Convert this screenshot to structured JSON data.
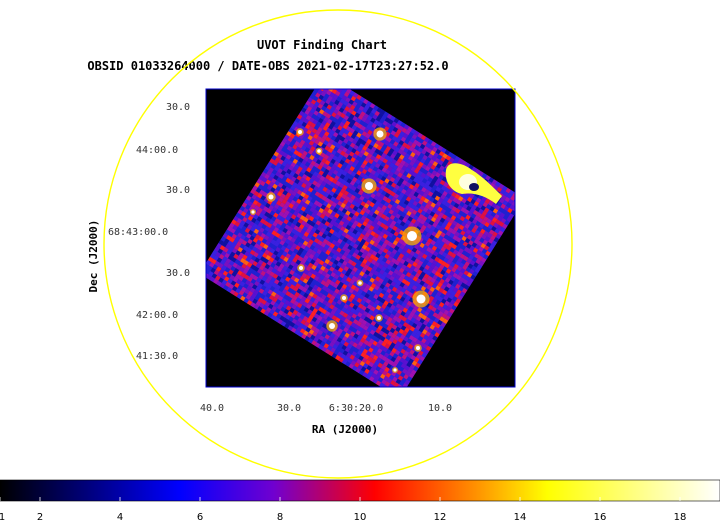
{
  "chart_data": {
    "type": "heatmap",
    "title": "UVOT Finding Chart",
    "subtitle": "OBSID 01033264000 / DATE-OBS 2021-02-17T23:27:52.0",
    "xlabel": "RA (J2000)",
    "ylabel": "Dec (J2000)",
    "x_ticks": [
      "40.0",
      "30.0",
      "6:30:20.0",
      "10.0"
    ],
    "y_ticks": [
      "30.0",
      "44:00.0",
      "30.0",
      "68:43:00.0",
      "30.0",
      "42:00.0",
      "41:30.0"
    ],
    "colorbar": {
      "min": 1,
      "max": 19,
      "ticks": [
        1,
        2,
        4,
        6,
        8,
        10,
        12,
        14,
        16,
        18
      ],
      "colormap": [
        "#000000",
        "#0000ff",
        "#8000c0",
        "#ff0000",
        "#ffa000",
        "#ffff00",
        "#ffffff"
      ]
    },
    "image_background": "#000000",
    "frame_color": "#0000cc",
    "circle_color": "#ffff00",
    "grid": false
  }
}
